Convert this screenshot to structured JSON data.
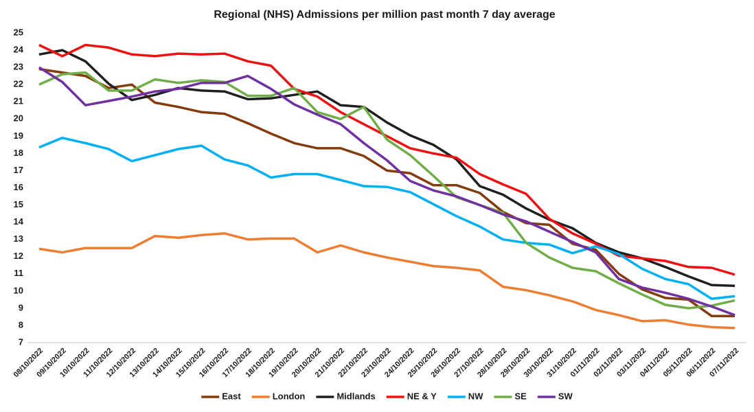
{
  "chart_data": {
    "type": "line",
    "title": "Regional (NHS) Admissions per million past month 7 day average",
    "categories": [
      "08/10/2022",
      "09/10/2022",
      "10/10/2022",
      "11/10/2022",
      "12/10/2022",
      "13/10/2022",
      "14/10/2022",
      "15/10/2022",
      "16/10/2022",
      "17/10/2022",
      "18/10/2022",
      "19/10/2022",
      "20/10/2022",
      "21/10/2022",
      "22/10/2022",
      "23/10/2022",
      "24/10/2022",
      "25/10/2022",
      "26/10/2022",
      "27/10/2022",
      "28/10/2022",
      "29/10/2022",
      "30/10/2022",
      "31/10/2022",
      "01/11/2022",
      "02/11/2022",
      "03/11/2022",
      "04/11/2022",
      "05/11/2022",
      "06/11/2022",
      "07/11/2022"
    ],
    "series": [
      {
        "name": "East",
        "color": "#843c0c",
        "values": [
          22.9,
          22.7,
          22.5,
          21.8,
          22.0,
          20.95,
          20.7,
          20.4,
          20.3,
          19.75,
          19.15,
          18.6,
          18.3,
          18.3,
          17.85,
          17.0,
          16.85,
          16.15,
          16.15,
          15.7,
          14.6,
          13.95,
          13.85,
          12.75,
          12.4,
          11.0,
          10.1,
          9.6,
          9.5,
          8.55,
          8.55
        ]
      },
      {
        "name": "London",
        "color": "#ed7d31",
        "values": [
          12.45,
          12.25,
          12.5,
          12.5,
          12.5,
          13.2,
          13.1,
          13.25,
          13.35,
          13.0,
          13.05,
          13.05,
          12.25,
          12.65,
          12.25,
          11.95,
          11.7,
          11.45,
          11.35,
          11.2,
          10.25,
          10.05,
          9.75,
          9.4,
          8.9,
          8.6,
          8.25,
          8.3,
          8.05,
          7.9,
          7.85
        ]
      },
      {
        "name": "Midlands",
        "color": "#1f1f1f",
        "values": [
          23.75,
          24.0,
          23.35,
          22.05,
          21.1,
          21.4,
          21.8,
          21.65,
          21.6,
          21.15,
          21.2,
          21.4,
          21.6,
          20.8,
          20.7,
          19.8,
          19.05,
          18.5,
          17.65,
          16.1,
          15.6,
          14.8,
          14.15,
          13.65,
          12.8,
          12.25,
          11.9,
          11.4,
          10.85,
          10.35,
          10.3
        ]
      },
      {
        "name": "NE & Y",
        "color": "#ee1111",
        "values": [
          24.3,
          23.65,
          24.3,
          24.15,
          23.75,
          23.65,
          23.8,
          23.75,
          23.8,
          23.35,
          23.1,
          21.75,
          21.3,
          20.4,
          19.7,
          19.0,
          18.3,
          18.0,
          17.75,
          16.8,
          16.2,
          15.65,
          14.2,
          13.35,
          12.75,
          12.05,
          11.9,
          11.75,
          11.4,
          11.35,
          10.95
        ]
      },
      {
        "name": "NW",
        "color": "#00b0f0",
        "values": [
          18.35,
          18.9,
          18.6,
          18.25,
          17.55,
          17.9,
          18.25,
          18.45,
          17.65,
          17.3,
          16.6,
          16.8,
          16.8,
          16.45,
          16.1,
          16.05,
          15.75,
          15.05,
          14.35,
          13.75,
          13.0,
          12.8,
          12.7,
          12.2,
          12.6,
          12.15,
          11.3,
          10.7,
          10.4,
          9.55,
          9.7
        ]
      },
      {
        "name": "SE",
        "color": "#70ad47",
        "values": [
          22.0,
          22.6,
          22.7,
          21.65,
          21.65,
          22.3,
          22.1,
          22.25,
          22.15,
          21.35,
          21.35,
          21.8,
          20.4,
          20.0,
          20.7,
          18.8,
          17.9,
          16.7,
          15.45,
          15.0,
          14.55,
          12.8,
          11.95,
          11.35,
          11.15,
          10.45,
          9.8,
          9.2,
          9.0,
          9.15,
          9.45
        ]
      },
      {
        "name": "SW",
        "color": "#7030a0",
        "values": [
          23.0,
          22.15,
          20.8,
          21.05,
          21.3,
          21.6,
          21.75,
          22.1,
          22.1,
          22.5,
          21.75,
          20.85,
          20.25,
          19.7,
          18.6,
          17.6,
          16.4,
          15.85,
          15.5,
          15.0,
          14.45,
          14.05,
          13.45,
          12.85,
          12.25,
          10.7,
          10.2,
          9.9,
          9.55,
          9.1,
          8.6
        ]
      }
    ],
    "ylim": [
      7,
      25
    ],
    "yticks": [
      7,
      8,
      9,
      10,
      11,
      12,
      13,
      14,
      15,
      16,
      17,
      18,
      19,
      20,
      21,
      22,
      23,
      24,
      25
    ],
    "grid": false,
    "legend": "bottom"
  }
}
